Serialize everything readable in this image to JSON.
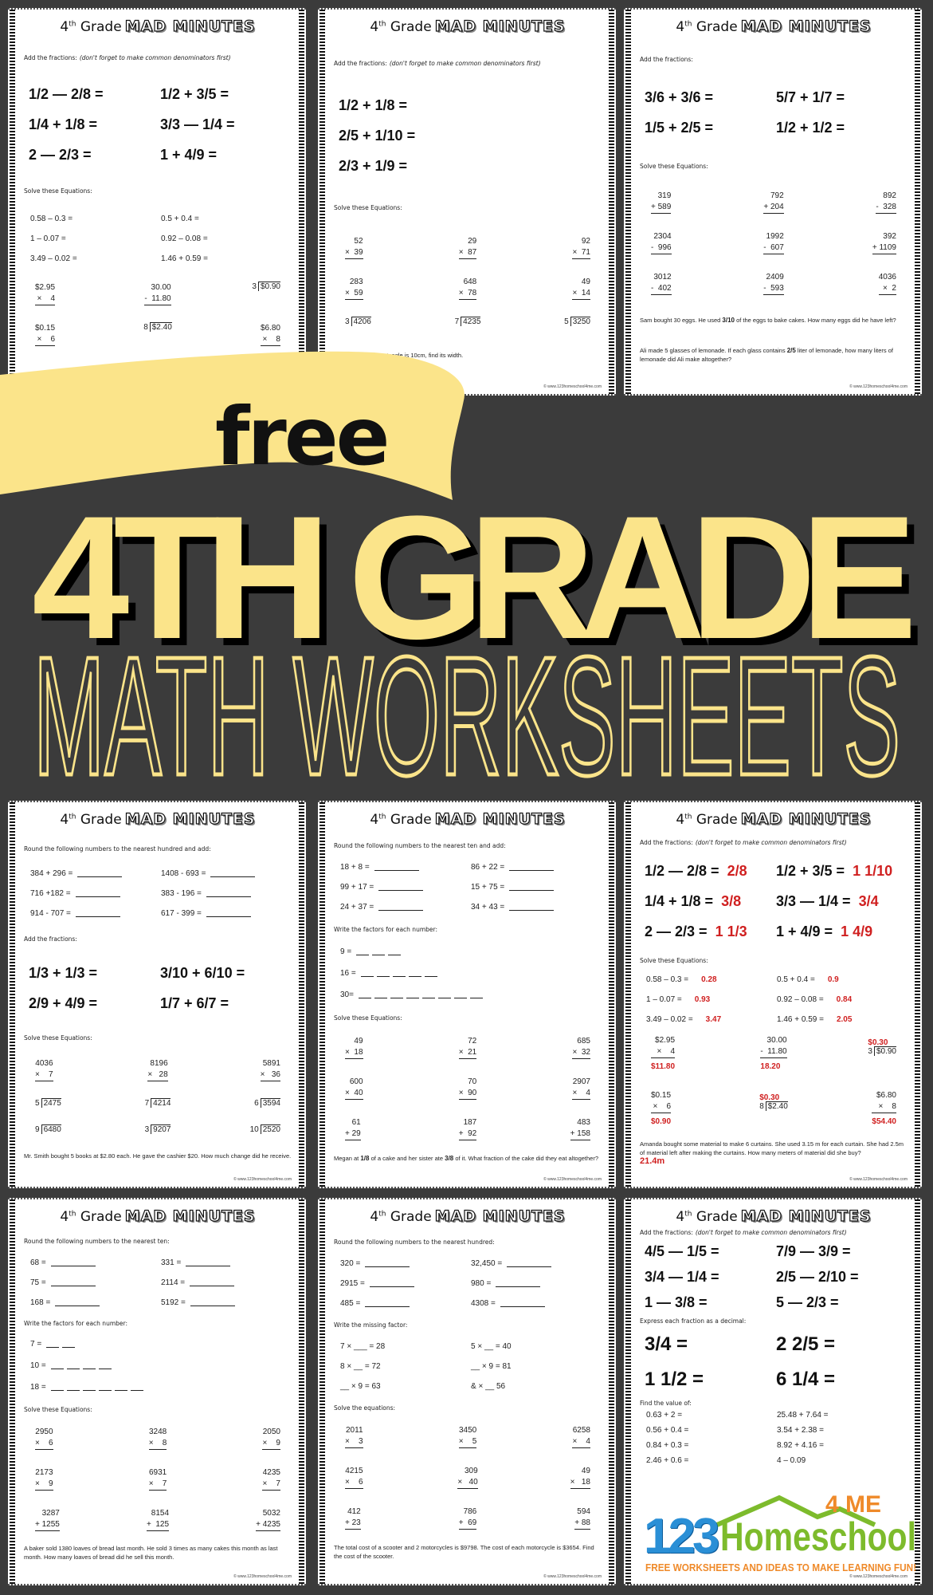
{
  "worksheet_title": {
    "grade_num": "4",
    "grade_sup": "th",
    "grade_word": "Grade",
    "mad": "MAD MINUTES"
  },
  "footer": "© www.123homeschool4me.com",
  "banner": {
    "free": "free",
    "line1": "4TH GRADE",
    "line2": "MATH WORKSHEETS"
  },
  "colors": {
    "background": "#3b3b3b",
    "yellow": "#fbe48a",
    "answer_red": "#d02020",
    "logo_blue": "#2a8fd6",
    "logo_green": "#7dbb2c",
    "logo_orange": "#ef8a2a"
  },
  "logo": {
    "numbers": "123",
    "word": "Homeschool",
    "suffix": "4 ME",
    "tagline": "FREE WORKSHEETS AND IDEAS TO MAKE LEARNING FUN!"
  },
  "worksheets": [
    {
      "sections": [
        {
          "type": "instr",
          "text": "Add the fractions:",
          "note": "(don't forget to make common denominators first)"
        },
        {
          "type": "frac",
          "items": [
            {
              "q": "1/2 — 2/8 ="
            },
            {
              "q": "1/2 + 3/5 ="
            },
            {
              "q": "1/4 + 1/8 ="
            },
            {
              "q": "3/3 — 1/4 ="
            },
            {
              "q": "2 — 2/3 ="
            },
            {
              "q": "1 + 4/9 ="
            }
          ]
        },
        {
          "type": "instr",
          "text": "Solve these Equations:"
        },
        {
          "type": "eq",
          "items": [
            {
              "q": "0.58 – 0.3 ="
            },
            {
              "q": "0.5 + 0.4 ="
            },
            {
              "q": "1 – 0.07 ="
            },
            {
              "q": "0.92 – 0.08 ="
            },
            {
              "q": "3.49 – 0.02 ="
            },
            {
              "q": "1.46 + 0.59 ="
            }
          ]
        },
        {
          "type": "prob",
          "items": [
            {
              "t": "$2.95",
              "b": "×    4"
            },
            {
              "t": "30.00",
              "b": "-  11.80"
            },
            {
              "d": "3",
              "n": "$0.90"
            },
            {
              "t": "$0.15",
              "b": "×    6"
            },
            {
              "d": "8",
              "n": "$2.40"
            },
            {
              "t": "$6.80",
              "b": "×    8"
            }
          ]
        },
        {
          "type": "word",
          "parts": [
            " "
          ]
        }
      ]
    },
    {
      "sections": [
        {
          "type": "instr",
          "text": "Add the fractions:",
          "note": "(don't forget to make common denominators first)"
        },
        {
          "type": "frac",
          "one": true,
          "items": [
            {
              "q": "1/2 + 1/8 ="
            },
            {
              "q": "2/5 + 1/10 ="
            },
            {
              "q": "2/3 + 1/9 ="
            }
          ]
        },
        {
          "type": "instr",
          "text": "Solve these Equations:"
        },
        {
          "type": "prob",
          "items": [
            {
              "t": "52",
              "b": "×  39"
            },
            {
              "t": "29",
              "b": "×  87"
            },
            {
              "t": "92",
              "b": "×  71"
            },
            {
              "t": "283",
              "b": "×  59"
            },
            {
              "t": "648",
              "b": "×  78"
            },
            {
              "t": "49",
              "b": "×  14"
            },
            {
              "d": "3",
              "n": "4206"
            },
            {
              "d": "7",
              "n": "4235"
            },
            {
              "d": "5",
              "n": "3250"
            }
          ]
        },
        {
          "type": "word",
          "parts": [
            "the length of the rectangle is 10cm, find its width."
          ]
        }
      ]
    },
    {
      "sections": [
        {
          "type": "instr",
          "text": "Add the fractions:"
        },
        {
          "type": "frac",
          "items": [
            {
              "q": "3/6 + 3/6 ="
            },
            {
              "q": "5/7 + 1/7 ="
            },
            {
              "q": "1/5 + 2/5 ="
            },
            {
              "q": "1/2 + 1/2 ="
            }
          ]
        },
        {
          "type": "instr",
          "text": "Solve these Equations:"
        },
        {
          "type": "prob",
          "items": [
            {
              "t": "319",
              "b": "+ 589"
            },
            {
              "t": "792",
              "b": "+ 204"
            },
            {
              "t": "892",
              "b": "-  328"
            },
            {
              "t": "2304",
              "b": "-  996"
            },
            {
              "t": "1992",
              "b": "-  607"
            },
            {
              "t": "392",
              "b": "+ 1109"
            },
            {
              "t": "3012",
              "b": "-  402"
            },
            {
              "t": "2409",
              "b": "-  593"
            },
            {
              "t": "4036",
              "b": "×  2"
            }
          ]
        },
        {
          "type": "word",
          "parts": [
            "Sam bought 30 eggs. He used ",
            {
              "f": "3/10"
            },
            " of the eggs to bake cakes. How many eggs did he have left?"
          ]
        },
        {
          "type": "word",
          "parts": [
            "Ali made 5 glasses of lemonade. If each glass contains ",
            {
              "f": "2/5"
            },
            " liter of lemonade, how many liters of lemonade did Ali make altogether?"
          ]
        }
      ]
    },
    {
      "sections": [
        {
          "type": "instr",
          "text": "Round the following numbers to the nearest hundred and add:"
        },
        {
          "type": "eq",
          "items": [
            {
              "q": "384 + 296 =",
              "blank": true
            },
            {
              "q": "1408 - 693 =",
              "blank": true
            },
            {
              "q": "716 +182 =",
              "blank": true
            },
            {
              "q": "383 - 196 =",
              "blank": true
            },
            {
              "q": "914 - 707 =",
              "blank": true
            },
            {
              "q": "617 - 399 =",
              "blank": true
            }
          ]
        },
        {
          "type": "instr",
          "text": "Add the fractions:"
        },
        {
          "type": "frac",
          "items": [
            {
              "q": "1/3 + 1/3 ="
            },
            {
              "q": "3/10 + 6/10 ="
            },
            {
              "q": "2/9 + 4/9 ="
            },
            {
              "q": "1/7 + 6/7 ="
            }
          ]
        },
        {
          "type": "instr",
          "text": "Solve these Equations:"
        },
        {
          "type": "prob",
          "items": [
            {
              "t": "4036",
              "b": "×    7"
            },
            {
              "t": "8196",
              "b": "×   28"
            },
            {
              "t": "5891",
              "b": "×   36"
            },
            {
              "d": "5",
              "n": "2475"
            },
            {
              "d": "7",
              "n": "4214"
            },
            {
              "d": "6",
              "n": "3594"
            },
            {
              "d": "9",
              "n": "6480"
            },
            {
              "d": "3",
              "n": "9207"
            },
            {
              "d": "10",
              "n": "2520"
            }
          ]
        },
        {
          "type": "word",
          "parts": [
            "Mr. Smith bought 5 books at $2.80 each. He gave the cashier $20. How much change did he receive."
          ]
        }
      ]
    },
    {
      "sections": [
        {
          "type": "instr",
          "text": "Round the following numbers to the nearest ten and add:"
        },
        {
          "type": "eq",
          "items": [
            {
              "q": "18 + 8 =",
              "blank": true
            },
            {
              "q": "86 + 22 =",
              "blank": true
            },
            {
              "q": "99 + 17 =",
              "blank": true
            },
            {
              "q": "15 + 75 =",
              "blank": true
            },
            {
              "q": "24 + 37 =",
              "blank": true
            },
            {
              "q": "34 + 43 =",
              "blank": true
            }
          ]
        },
        {
          "type": "instr",
          "text": "Write the factors for each number:"
        },
        {
          "type": "factor",
          "items": [
            {
              "q": "9 =",
              "blanks": 3
            },
            {
              "q": "16 =",
              "blanks": 5
            },
            {
              "q": "30=",
              "blanks": 8
            }
          ]
        },
        {
          "type": "instr",
          "text": "Solve these Equations:"
        },
        {
          "type": "prob",
          "items": [
            {
              "t": "49",
              "b": "×  18"
            },
            {
              "t": "72",
              "b": "×  21"
            },
            {
              "t": "685",
              "b": "×  32"
            },
            {
              "t": "600",
              "b": "×  40"
            },
            {
              "t": "70",
              "b": "×  90"
            },
            {
              "t": "2907",
              "b": "×    4"
            },
            {
              "t": "61",
              "b": "+ 29"
            },
            {
              "t": "187",
              "b": "+  92"
            },
            {
              "t": "483",
              "b": "+ 158"
            }
          ]
        },
        {
          "type": "word",
          "parts": [
            "Megan at ",
            {
              "f": "1/8"
            },
            " of a cake and her sister ate ",
            {
              "f": "3/8"
            },
            " of it. What fraction of the cake did they eat altogether?"
          ]
        }
      ]
    },
    {
      "sections": [
        {
          "type": "instr",
          "text": "Add the fractions:",
          "note": "(don't forget to make common denominators first)"
        },
        {
          "type": "frac",
          "items": [
            {
              "q": "1/2 — 2/8 =",
              "ans": "2/8"
            },
            {
              "q": "1/2 + 3/5 =",
              "ans": "1 1/10"
            },
            {
              "q": "1/4 + 1/8 =",
              "ans": "3/8"
            },
            {
              "q": "3/3 — 1/4 =",
              "ans": "3/4"
            },
            {
              "q": "2 — 2/3 =",
              "ans": "1 1/3"
            },
            {
              "q": "1 + 4/9 =",
              "ans": "1 4/9"
            }
          ]
        },
        {
          "type": "instr",
          "text": "Solve these Equations:"
        },
        {
          "type": "eq",
          "items": [
            {
              "q": "0.58 – 0.3 =",
              "ans": "0.28"
            },
            {
              "q": "0.5 + 0.4 =",
              "ans": "0.9"
            },
            {
              "q": "1 – 0.07 =",
              "ans": "0.93"
            },
            {
              "q": "0.92 – 0.08 =",
              "ans": "0.84"
            },
            {
              "q": "3.49 – 0.02 =",
              "ans": "3.47"
            },
            {
              "q": "1.46 + 0.59 =",
              "ans": "2.05"
            }
          ]
        },
        {
          "type": "prob",
          "items": [
            {
              "t": "$2.95",
              "b": "×    4",
              "ans": "$11.80"
            },
            {
              "t": "30.00",
              "b": "-  11.80",
              "ans": "18.20"
            },
            {
              "d": "3",
              "n": "$0.90",
              "ans": "$0.30"
            },
            {
              "t": "$0.15",
              "b": "×    6",
              "ans": "$0.90"
            },
            {
              "d": "8",
              "n": "$2.40",
              "ans": "$0.30"
            },
            {
              "t": "$6.80",
              "b": "×    8",
              "ans": "$54.40"
            }
          ]
        },
        {
          "type": "word",
          "parts": [
            "Amanda bought some material to make 6 curtains. She used 3.15 m for each curtain. She had 2.5m of material left after making the curtains. How many meters of material did she buy?"
          ],
          "ans": "21.4m"
        }
      ]
    },
    {
      "sections": [
        {
          "type": "instr",
          "text": "Round the following numbers to the nearest ten:"
        },
        {
          "type": "eq",
          "items": [
            {
              "q": "68 =",
              "blank": true
            },
            {
              "q": "331 =",
              "blank": true
            },
            {
              "q": "75 =",
              "blank": true
            },
            {
              "q": "2114 =",
              "blank": true
            },
            {
              "q": "168 =",
              "blank": true
            },
            {
              "q": "5192 =",
              "blank": true
            }
          ]
        },
        {
          "type": "instr",
          "text": "Write the factors for each number:"
        },
        {
          "type": "factor",
          "items": [
            {
              "q": "7 =",
              "blanks": 2
            },
            {
              "q": "10 =",
              "blanks": 4
            },
            {
              "q": "18 =",
              "blanks": 6
            }
          ]
        },
        {
          "type": "instr",
          "text": "Solve these Equations:"
        },
        {
          "type": "prob",
          "items": [
            {
              "t": "2950",
              "b": "×    6"
            },
            {
              "t": "3248",
              "b": "×    8"
            },
            {
              "t": "2050",
              "b": "×    9"
            },
            {
              "t": "2173",
              "b": "×    9"
            },
            {
              "t": "6931",
              "b": "×    7"
            },
            {
              "t": "4235",
              "b": "×    7"
            },
            {
              "t": "3287",
              "b": "+ 1255"
            },
            {
              "t": "8154",
              "b": "+  125"
            },
            {
              "t": "5032",
              "b": "+ 4235"
            }
          ]
        },
        {
          "type": "word",
          "parts": [
            "A baker sold 1380 loaves of bread last month. He sold 3 times as many cakes this month as last month. How many loaves of bread did he sell this month."
          ]
        }
      ]
    },
    {
      "sections": [
        {
          "type": "instr",
          "text": "Round the following numbers to the nearest hundred:"
        },
        {
          "type": "eq",
          "items": [
            {
              "q": "320 =",
              "blank": true
            },
            {
              "q": "32,450 =",
              "blank": true
            },
            {
              "q": "2915 =",
              "blank": true
            },
            {
              "q": "980 =",
              "blank": true
            },
            {
              "q": "485 =",
              "blank": true
            },
            {
              "q": "4308 =",
              "blank": true
            }
          ]
        },
        {
          "type": "instr",
          "text": "Write the missing factor:"
        },
        {
          "type": "eq",
          "items": [
            {
              "q": "7  ×  ___  = 28"
            },
            {
              "q": "5 ×  __  =  40"
            },
            {
              "q": "8  ×  __  =  72"
            },
            {
              "q": "__ ×  9  =  81"
            },
            {
              "q": "__ ×  9  =  63"
            },
            {
              "q": "& ×  __   56"
            }
          ]
        },
        {
          "type": "instr",
          "text": "Solve the equations:"
        },
        {
          "type": "prob",
          "items": [
            {
              "t": "2011",
              "b": "×    3"
            },
            {
              "t": "3450",
              "b": "×    5"
            },
            {
              "t": "6258",
              "b": "×    4"
            },
            {
              "t": "4215",
              "b": "×    6"
            },
            {
              "t": "309",
              "b": "×   40"
            },
            {
              "t": "49",
              "b": "×   18"
            },
            {
              "t": "412",
              "b": "+ 23"
            },
            {
              "t": "786",
              "b": "+  69"
            },
            {
              "t": "594",
              "b": "+ 88"
            }
          ]
        },
        {
          "type": "word",
          "parts": [
            "The total cost of a scooter and 2 motorcycles is $9798.  The cost of each motorcycle is $3654. Find the cost of the scooter."
          ]
        }
      ]
    },
    {
      "sections": [
        {
          "type": "instr",
          "text": "Add the fractions:",
          "note": "(don't forget to make common denominators first)"
        },
        {
          "type": "frac",
          "items": [
            {
              "q": "4/5 — 1/5 ="
            },
            {
              "q": "7/9 — 3/9 ="
            },
            {
              "q": "3/4 — 1/4 ="
            },
            {
              "q": "2/5 — 2/10 ="
            },
            {
              "q": "1 — 3/8 ="
            },
            {
              "q": "5 — 2/3 ="
            }
          ]
        },
        {
          "type": "instr",
          "text": "Express each fraction as a decimal:"
        },
        {
          "type": "frac",
          "tall": true,
          "items": [
            {
              "q": "3/4 ="
            },
            {
              "q": "2 2/5 ="
            },
            {
              "q": "1 1/2 ="
            },
            {
              "q": "6 1/4 ="
            }
          ]
        },
        {
          "type": "instr",
          "text": "Find the value of:"
        },
        {
          "type": "eq",
          "items": [
            {
              "q": "0.63 + 2 ="
            },
            {
              "q": "25.48 + 7.64 ="
            },
            {
              "q": "0.56 + 0.4 ="
            },
            {
              "q": "3.54 + 2.38 ="
            },
            {
              "q": "0.84 + 0.3 ="
            },
            {
              "q": "8.92 + 4.16 ="
            },
            {
              "q": "2.46 + 0.6 ="
            },
            {
              "q": "4 – 0.09"
            }
          ]
        },
        {
          "type": "word",
          "parts": [
            " "
          ]
        }
      ]
    }
  ]
}
